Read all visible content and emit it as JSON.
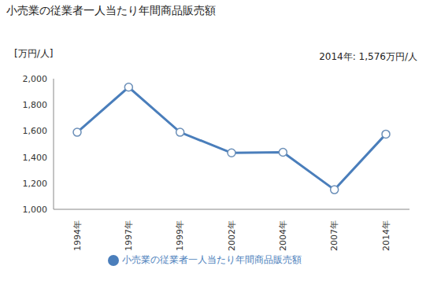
{
  "chart_data": {
    "type": "line",
    "title": "小売業の従業者一人当たり年間商品販売額",
    "y_label": "[万円/人]",
    "annotation": "2014年: 1,576万円/人",
    "categories": [
      "1994年",
      "1997年",
      "1999年",
      "2002年",
      "2004年",
      "2007年",
      "2014年"
    ],
    "series": [
      {
        "name": "小売業の従業者一人当たり年間商品販売額",
        "color": "#4a7ebb",
        "marker": "circle",
        "values": [
          1590,
          1935,
          1590,
          1432,
          1437,
          1150,
          1576
        ]
      }
    ],
    "ylim": [
      1000,
      2000
    ],
    "yticks": [
      {
        "value": 1000,
        "label": "1,000"
      },
      {
        "value": 1200,
        "label": "1,200"
      },
      {
        "value": 1400,
        "label": "1,400"
      },
      {
        "value": 1600,
        "label": "1,600"
      },
      {
        "value": 1800,
        "label": "1,800"
      },
      {
        "value": 2000,
        "label": "2,000"
      }
    ],
    "grid": false,
    "legend": "bottom"
  }
}
